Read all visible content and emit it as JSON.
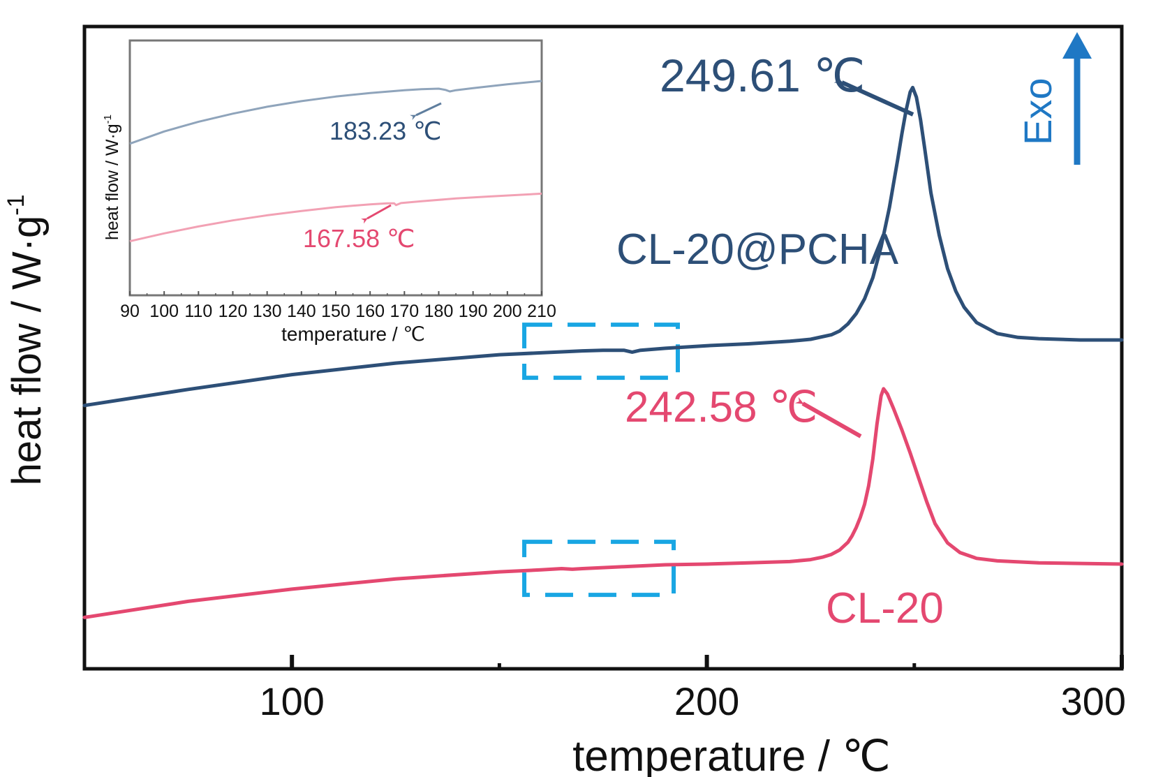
{
  "chart_data": [
    {
      "type": "line",
      "title": "",
      "xlabel": "temperature / ℃",
      "ylabel": "heat flow / W·g",
      "ylabel_superscript": "-1",
      "xlim": [
        50,
        300
      ],
      "ylim": [
        0,
        100
      ],
      "yticks_shown": false,
      "xticks": [
        100,
        200,
        300
      ],
      "grid": false,
      "legend": "none",
      "exo_label": "Exo",
      "colors": {
        "blue": "#2d4f77",
        "red": "#e44870",
        "box": "#19a6e3",
        "exo": "#1f78c4"
      },
      "series": [
        {
          "name": "CL-20@PCHA",
          "color": "#2d4f77",
          "x": [
            50,
            75,
            100,
            125,
            150,
            160,
            170,
            175,
            180,
            182,
            184,
            190,
            200,
            210,
            220,
            225,
            230,
            232,
            234,
            236,
            238,
            240,
            242,
            244,
            246,
            247,
            248,
            249,
            249.61,
            250.5,
            251.5,
            252.5,
            254,
            256,
            258,
            260,
            262,
            265,
            270,
            275,
            280,
            290,
            300
          ],
          "y": [
            41.0,
            43.5,
            45.8,
            47.6,
            48.9,
            49.2,
            49.5,
            49.6,
            49.6,
            49.3,
            49.6,
            49.9,
            50.3,
            50.6,
            51.0,
            51.3,
            52.0,
            52.6,
            53.7,
            55.3,
            57.6,
            60.9,
            65.7,
            71.8,
            79.3,
            83.3,
            86.9,
            89.8,
            90.5,
            89.0,
            85.5,
            81.0,
            74.1,
            67.5,
            62.3,
            58.8,
            56.3,
            53.9,
            52.2,
            51.6,
            51.4,
            51.2,
            51.2
          ]
        },
        {
          "name": "CL-20",
          "color": "#e44870",
          "x": [
            50,
            75,
            100,
            125,
            150,
            160,
            165,
            167.58,
            170,
            180,
            190,
            200,
            210,
            220,
            225,
            228,
            230,
            232,
            234,
            235,
            236,
            237,
            238,
            239,
            240,
            241,
            242,
            242.58,
            243.5,
            245,
            247,
            249,
            251,
            253,
            255,
            258,
            261,
            265,
            270,
            280,
            290,
            300
          ],
          "y": [
            8.0,
            10.5,
            12.4,
            14.0,
            15.1,
            15.4,
            15.6,
            15.5,
            15.6,
            15.9,
            16.2,
            16.3,
            16.5,
            16.7,
            17.0,
            17.4,
            17.8,
            18.5,
            19.7,
            20.7,
            22.0,
            23.6,
            25.6,
            28.5,
            32.7,
            38.1,
            42.5,
            43.6,
            42.8,
            40.5,
            37.2,
            33.6,
            29.8,
            26.0,
            22.6,
            19.6,
            18.1,
            17.2,
            16.8,
            16.5,
            16.4,
            16.3
          ]
        }
      ],
      "annotations": [
        {
          "text": "249.61 ℃",
          "color": "#2d4f77",
          "x": 249.61
        },
        {
          "text": "242.58 ℃",
          "color": "#e44870",
          "x": 242.58
        },
        {
          "text": "CL-20@PCHA",
          "color": "#2d4f77"
        },
        {
          "text": "CL-20",
          "color": "#e44870"
        }
      ],
      "highlight_boxes": [
        {
          "x_range": [
            156,
            193
          ],
          "series": "CL-20@PCHA"
        },
        {
          "x_range": [
            156,
            192
          ],
          "series": "CL-20"
        }
      ]
    },
    {
      "type": "line",
      "title": "",
      "xlabel": "temperature / ℃",
      "ylabel": "heat flow / W·g",
      "ylabel_superscript": "-1",
      "xlim": [
        90,
        210
      ],
      "ylim": [
        0,
        100
      ],
      "yticks_shown": false,
      "xticks": [
        90,
        100,
        110,
        120,
        130,
        140,
        150,
        160,
        170,
        180,
        190,
        200,
        210
      ],
      "grid": false,
      "legend": "none",
      "series": [
        {
          "name": "CL-20@PCHA",
          "color": "#8fa4bb",
          "x": [
            90,
            100,
            110,
            120,
            130,
            140,
            150,
            160,
            170,
            175,
            180,
            182,
            183.23,
            185,
            190,
            200,
            210
          ],
          "y": [
            59.5,
            64.3,
            68.1,
            71.3,
            74.0,
            76.2,
            78.0,
            79.4,
            80.5,
            80.9,
            81.1,
            80.6,
            80.0,
            80.5,
            81.3,
            82.8,
            84.1
          ]
        },
        {
          "name": "CL-20",
          "color": "#f2a1b4",
          "x": [
            90,
            100,
            110,
            120,
            130,
            140,
            150,
            160,
            165,
            167,
            167.58,
            169,
            175,
            185,
            195,
            210
          ],
          "y": [
            21.2,
            24.3,
            27.0,
            29.4,
            31.4,
            33.1,
            34.6,
            35.7,
            36.1,
            36.1,
            35.4,
            36.2,
            36.9,
            38.0,
            38.8,
            39.9
          ]
        }
      ],
      "annotations": [
        {
          "text": "183.23 ℃",
          "color": "#2d4f77",
          "x": 183.23
        },
        {
          "text": "167.58 ℃",
          "color": "#e44870",
          "x": 167.58
        }
      ]
    }
  ]
}
